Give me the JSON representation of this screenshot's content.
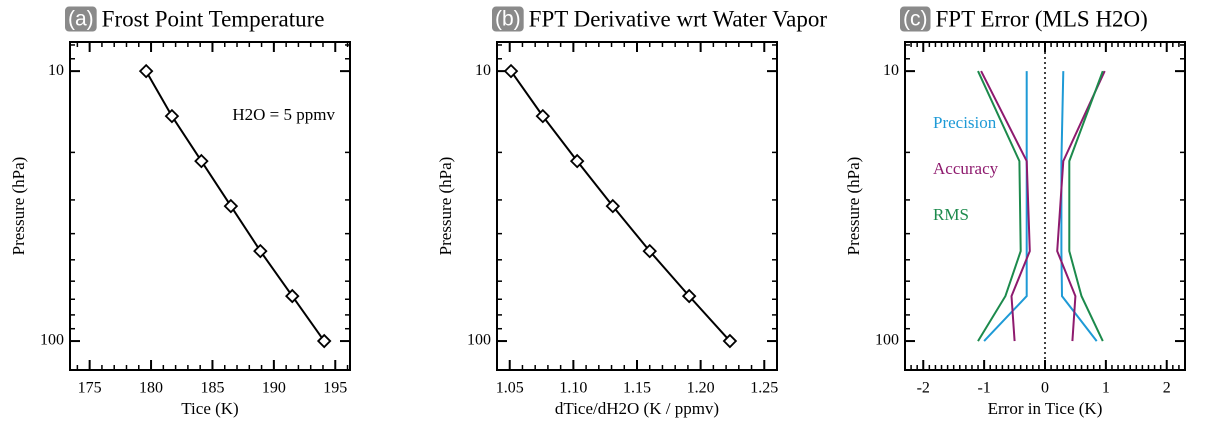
{
  "chart_data": [
    {
      "type": "line",
      "panel_label": "(a)",
      "title": "Frost Point Temperature",
      "x_label": "Tice (K)",
      "y_label": "Pressure (hPa)",
      "annotation": "H2O = 5 ppmv",
      "series": [
        {
          "color": "#000000",
          "marker": "diamond",
          "x": [
            179.6,
            181.7,
            184.1,
            186.5,
            188.9,
            191.5,
            194.1
          ],
          "y": [
            10,
            14.68,
            21.54,
            31.62,
            46.42,
            68.13,
            100
          ]
        }
      ],
      "xlim": [
        173.4,
        196.2
      ],
      "xticks": [
        175,
        180,
        185,
        190,
        195
      ],
      "xminor_step": 1,
      "ylim": [
        128,
        7.8
      ],
      "yticks": [
        10,
        100
      ],
      "ylog": true,
      "yminor": true
    },
    {
      "type": "line",
      "panel_label": "(b)",
      "title": "FPT Derivative wrt Water Vapor",
      "x_label": "dTice/dH2O (K / ppmv)",
      "y_label": "Pressure (hPa)",
      "series": [
        {
          "color": "#000000",
          "marker": "diamond",
          "x": [
            1.051,
            1.076,
            1.103,
            1.131,
            1.16,
            1.191,
            1.223
          ],
          "y": [
            10,
            14.68,
            21.54,
            31.62,
            46.42,
            68.13,
            100
          ]
        }
      ],
      "xlim": [
        1.04,
        1.26
      ],
      "xticks": [
        1.05,
        {
          "value": 1.1,
          "label": "1.10"
        },
        1.15,
        {
          "value": 1.2,
          "label": "1.20"
        },
        1.25
      ],
      "xminor_step": 0.01,
      "ylim": [
        128,
        7.8
      ],
      "yticks": [
        10,
        100
      ],
      "ylog": true,
      "yminor": true
    },
    {
      "type": "envelope",
      "panel_label": "(c)",
      "title": "FPT Error (MLS H2O)",
      "x_label": "Error in Tice (K)",
      "y_label": "Pressure (hPa)",
      "zero_line": true,
      "series": [
        {
          "name": "Precision",
          "color": "#1e9ad6",
          "y": [
            10,
            21.54,
            46.42,
            68.13,
            100
          ],
          "x_left": [
            -0.3,
            -0.3,
            -0.3,
            -0.3,
            -1.0
          ],
          "x_right": [
            0.3,
            0.27,
            0.27,
            0.28,
            0.85
          ]
        },
        {
          "name": "Accuracy",
          "color": "#8e1a6e",
          "y": [
            10,
            21.54,
            46.42,
            68.13,
            100
          ],
          "x_left": [
            -1.05,
            -0.3,
            -0.25,
            -0.55,
            -0.5
          ],
          "x_right": [
            0.98,
            0.3,
            0.2,
            0.5,
            0.45
          ]
        },
        {
          "name": "RMS",
          "color": "#1c8a4c",
          "y": [
            10,
            21.54,
            46.42,
            68.13,
            100
          ],
          "x_left": [
            -1.1,
            -0.42,
            -0.4,
            -0.65,
            -1.1
          ],
          "x_right": [
            0.95,
            0.4,
            0.4,
            0.6,
            0.95
          ]
        }
      ],
      "xlim": [
        -2.3,
        2.3
      ],
      "xticks": [
        -2,
        -1,
        0,
        1,
        2
      ],
      "xminor_step": 0.1,
      "ylim": [
        128,
        7.8
      ],
      "yticks": [
        10,
        100
      ],
      "ylog": true,
      "yminor": true
    }
  ]
}
